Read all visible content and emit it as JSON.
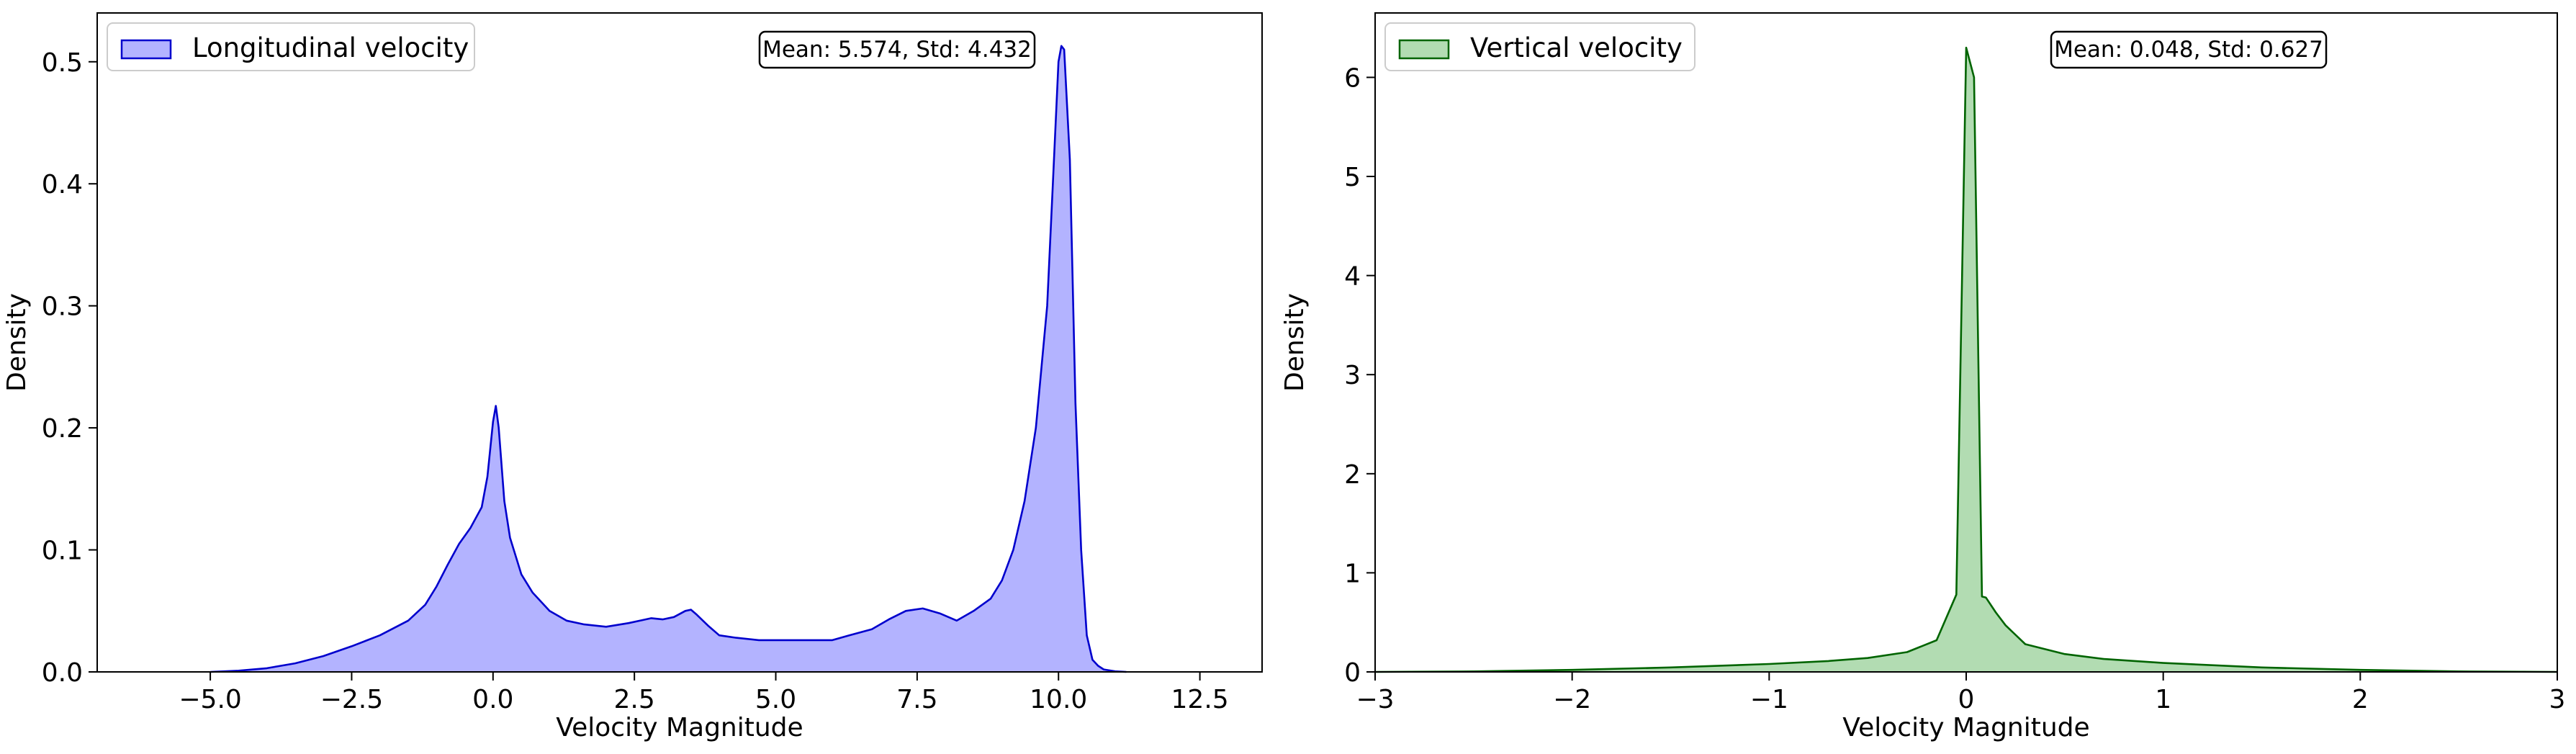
{
  "chart_data": [
    {
      "type": "area",
      "xlabel": "Velocity Magnitude",
      "ylabel": "Density",
      "xlim": [
        -7.0,
        13.6
      ],
      "ylim": [
        0,
        0.54
      ],
      "xticks": [
        -5.0,
        -2.5,
        0.0,
        2.5,
        5.0,
        7.5,
        10.0,
        12.5
      ],
      "xtick_labels": [
        "−5.0",
        "−2.5",
        "0.0",
        "2.5",
        "5.0",
        "7.5",
        "10.0",
        "12.5"
      ],
      "yticks": [
        0.0,
        0.1,
        0.2,
        0.3,
        0.4,
        0.5
      ],
      "ytick_labels": [
        "0.0",
        "0.1",
        "0.2",
        "0.3",
        "0.4",
        "0.5"
      ],
      "legend": {
        "label": "Longitudinal velocity",
        "placement": "upper-left"
      },
      "stats_box": "Mean: 5.574, Std: 4.432",
      "grid": false,
      "colors": {
        "fill": "#b3b3ff",
        "line": "#0000cd"
      },
      "series": [
        {
          "name": "Longitudinal velocity",
          "x": [
            -5.0,
            -4.5,
            -4.0,
            -3.5,
            -3.0,
            -2.5,
            -2.0,
            -1.5,
            -1.2,
            -1.0,
            -0.8,
            -0.6,
            -0.4,
            -0.2,
            -0.1,
            0.0,
            0.05,
            0.1,
            0.2,
            0.3,
            0.5,
            0.7,
            1.0,
            1.3,
            1.6,
            2.0,
            2.4,
            2.8,
            3.0,
            3.2,
            3.4,
            3.5,
            3.6,
            3.8,
            4.0,
            4.3,
            4.7,
            5.0,
            5.5,
            6.0,
            6.3,
            6.7,
            7.0,
            7.3,
            7.6,
            7.9,
            8.2,
            8.5,
            8.8,
            9.0,
            9.2,
            9.4,
            9.6,
            9.8,
            9.9,
            10.0,
            10.05,
            10.1,
            10.2,
            10.3,
            10.4,
            10.5,
            10.6,
            10.7,
            10.8,
            11.0,
            11.2
          ],
          "y": [
            0.0,
            0.001,
            0.003,
            0.007,
            0.013,
            0.021,
            0.03,
            0.042,
            0.055,
            0.07,
            0.088,
            0.105,
            0.118,
            0.135,
            0.16,
            0.205,
            0.218,
            0.2,
            0.14,
            0.11,
            0.08,
            0.065,
            0.05,
            0.042,
            0.039,
            0.037,
            0.04,
            0.044,
            0.043,
            0.045,
            0.05,
            0.051,
            0.047,
            0.038,
            0.03,
            0.028,
            0.026,
            0.026,
            0.026,
            0.026,
            0.03,
            0.035,
            0.043,
            0.05,
            0.052,
            0.048,
            0.042,
            0.05,
            0.06,
            0.075,
            0.1,
            0.14,
            0.2,
            0.3,
            0.4,
            0.5,
            0.513,
            0.51,
            0.42,
            0.22,
            0.1,
            0.03,
            0.01,
            0.005,
            0.002,
            0.0005,
            0.0
          ]
        }
      ]
    },
    {
      "type": "area",
      "xlabel": "Velocity Magnitude",
      "ylabel": "Density",
      "xlim": [
        -3,
        3
      ],
      "ylim": [
        0,
        6.65
      ],
      "xticks": [
        -3,
        -2,
        -1,
        0,
        1,
        2,
        3
      ],
      "xtick_labels": [
        "−3",
        "−2",
        "−1",
        "0",
        "1",
        "2",
        "3"
      ],
      "yticks": [
        0,
        1,
        2,
        3,
        4,
        5,
        6
      ],
      "ytick_labels": [
        "0",
        "1",
        "2",
        "3",
        "4",
        "5",
        "6"
      ],
      "legend": {
        "label": "Vertical velocity",
        "placement": "upper-left"
      },
      "stats_box": "Mean: 0.048, Std: 0.627",
      "grid": false,
      "colors": {
        "fill": "#b2dcb2",
        "line": "#006400"
      },
      "series": [
        {
          "name": "Vertical velocity",
          "x": [
            -3.0,
            -2.5,
            -2.0,
            -1.5,
            -1.0,
            -0.7,
            -0.5,
            -0.3,
            -0.15,
            -0.05,
            0.0,
            0.04,
            0.08,
            0.1,
            0.15,
            0.2,
            0.3,
            0.5,
            0.7,
            1.0,
            1.5,
            2.0,
            2.5,
            3.0
          ],
          "y": [
            0.0,
            0.005,
            0.02,
            0.045,
            0.08,
            0.11,
            0.14,
            0.2,
            0.32,
            0.78,
            6.3,
            6.0,
            0.76,
            0.75,
            0.6,
            0.47,
            0.28,
            0.18,
            0.13,
            0.09,
            0.045,
            0.02,
            0.005,
            0.0
          ]
        }
      ]
    }
  ]
}
